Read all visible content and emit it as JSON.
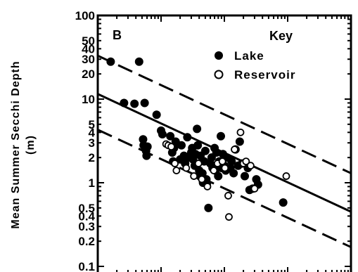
{
  "chart_data": {
    "type": "scatter",
    "panel_label": "B",
    "ylabel_line1": "Mean Summer Secchi Depth",
    "ylabel_line2": "(m)",
    "xlabel": "",
    "yscale": "log",
    "ylim": [
      0.1,
      100
    ],
    "xscale": "log",
    "xlim": [
      0.1,
      1000
    ],
    "y_tick_labels": [
      {
        "value": 100,
        "label": "100"
      },
      {
        "value": 50,
        "label": "50"
      },
      {
        "value": 40,
        "label": "40"
      },
      {
        "value": 30,
        "label": "30"
      },
      {
        "value": 20,
        "label": "20"
      },
      {
        "value": 10,
        "label": "10"
      },
      {
        "value": 5,
        "label": "5"
      },
      {
        "value": 4,
        "label": "4"
      },
      {
        "value": 3,
        "label": "3"
      },
      {
        "value": 2,
        "label": "2"
      },
      {
        "value": 1,
        "label": "1"
      },
      {
        "value": 0.5,
        "label": "0.5"
      },
      {
        "value": 0.4,
        "label": "0.4"
      },
      {
        "value": 0.3,
        "label": "0.3"
      },
      {
        "value": 0.2,
        "label": "0.2"
      },
      {
        "value": 0.1,
        "label": "0.1"
      }
    ],
    "legend": {
      "title": "Key",
      "position": "top-right",
      "entries": [
        {
          "label": "Lake",
          "marker": "filled-circle"
        },
        {
          "label": "Reservoir",
          "marker": "open-circle"
        }
      ]
    },
    "lines": [
      {
        "style": "dashed",
        "x": [
          0.1,
          1000
        ],
        "y": [
          33,
          1.3
        ]
      },
      {
        "style": "solid",
        "x": [
          0.1,
          1000
        ],
        "y": [
          11.5,
          0.45
        ]
      },
      {
        "style": "dashed",
        "x": [
          0.1,
          1000
        ],
        "y": [
          4.3,
          0.17
        ]
      }
    ],
    "series": [
      {
        "name": "Lake",
        "marker": "filled-circle",
        "points": [
          [
            0.16,
            28
          ],
          [
            0.45,
            28
          ],
          [
            0.26,
            9
          ],
          [
            0.38,
            8.8
          ],
          [
            0.55,
            9
          ],
          [
            0.85,
            6.5
          ],
          [
            0.52,
            3.3
          ],
          [
            0.53,
            2.8
          ],
          [
            0.58,
            2.4
          ],
          [
            0.61,
            2.7
          ],
          [
            0.59,
            2.1
          ],
          [
            1.0,
            4.2
          ],
          [
            1.05,
            3.8
          ],
          [
            1.4,
            3.6
          ],
          [
            1.5,
            2.3
          ],
          [
            1.6,
            2.6
          ],
          [
            1.7,
            3.1
          ],
          [
            1.55,
            1.8
          ],
          [
            2.0,
            1.9
          ],
          [
            2.1,
            2.8
          ],
          [
            2.3,
            2.1
          ],
          [
            2.4,
            1.7
          ],
          [
            2.6,
            3.5
          ],
          [
            2.7,
            2.0
          ],
          [
            3.0,
            2.3
          ],
          [
            3.1,
            2.6
          ],
          [
            3.2,
            1.9
          ],
          [
            3.4,
            1.6
          ],
          [
            3.5,
            2.2
          ],
          [
            3.7,
            4.4
          ],
          [
            3.8,
            2.8
          ],
          [
            4.0,
            1.4
          ],
          [
            4.1,
            1.2
          ],
          [
            4.2,
            2.1
          ],
          [
            4.5,
            1.3
          ],
          [
            4.6,
            1.0
          ],
          [
            4.8,
            1.8
          ],
          [
            5.0,
            2.4
          ],
          [
            5.2,
            1.1
          ],
          [
            5.3,
            0.98
          ],
          [
            5.6,
            0.5
          ],
          [
            6.0,
            1.7
          ],
          [
            6.3,
            2.0
          ],
          [
            6.5,
            1.5
          ],
          [
            7.0,
            2.6
          ],
          [
            7.2,
            1.4
          ],
          [
            7.5,
            2.3
          ],
          [
            8.0,
            1.2
          ],
          [
            8.3,
            1.8
          ],
          [
            8.8,
            3.6
          ],
          [
            9.0,
            1.5
          ],
          [
            9.5,
            2.2
          ],
          [
            10.0,
            1.6
          ],
          [
            10.5,
            1.4
          ],
          [
            11.0,
            2.0
          ],
          [
            12.5,
            1.5
          ],
          [
            13.0,
            1.8
          ],
          [
            14.0,
            1.3
          ],
          [
            15.0,
            2.5
          ],
          [
            16.5,
            1.6
          ],
          [
            17.5,
            3.1
          ],
          [
            19.0,
            1.7
          ],
          [
            21.0,
            1.2
          ],
          [
            23.5,
            1.5
          ],
          [
            25.0,
            0.82
          ],
          [
            28.0,
            0.85
          ],
          [
            32.0,
            1.1
          ],
          [
            34.0,
            0.95
          ],
          [
            85.0,
            0.58
          ]
        ]
      },
      {
        "name": "Reservoir",
        "marker": "open-circle",
        "points": [
          [
            1.2,
            2.9
          ],
          [
            1.3,
            2.8
          ],
          [
            1.45,
            2.7
          ],
          [
            1.65,
            1.7
          ],
          [
            1.75,
            1.4
          ],
          [
            2.5,
            1.5
          ],
          [
            3.3,
            1.2
          ],
          [
            3.9,
            1.7
          ],
          [
            4.4,
            1.1
          ],
          [
            5.4,
            0.9
          ],
          [
            6.8,
            1.4
          ],
          [
            7.8,
            1.7
          ],
          [
            9.3,
            1.8
          ],
          [
            10.2,
            1.5
          ],
          [
            11.5,
            0.7
          ],
          [
            11.8,
            0.39
          ],
          [
            14.5,
            2.5
          ],
          [
            18.0,
            4.0
          ],
          [
            20.0,
            1.7
          ],
          [
            22.0,
            1.8
          ],
          [
            26.0,
            1.6
          ],
          [
            30.0,
            0.85
          ],
          [
            95.0,
            1.2
          ]
        ]
      }
    ]
  }
}
